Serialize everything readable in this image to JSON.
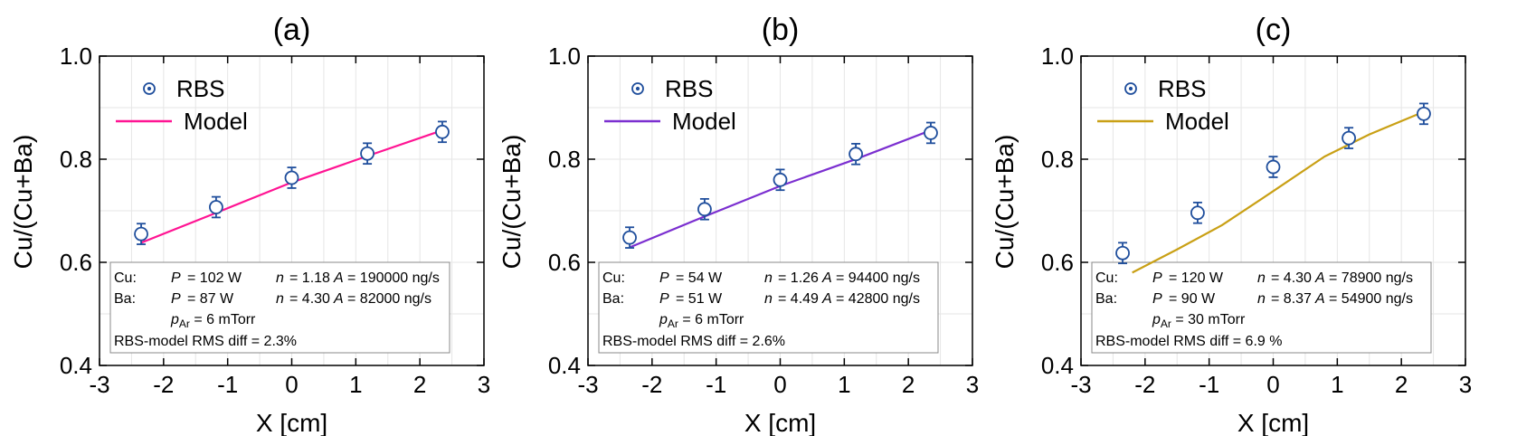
{
  "chart_data": [
    {
      "type": "scatter",
      "title": "(a)",
      "xlabel": "X [cm]",
      "ylabel": "Cu/(Cu+Ba)",
      "xlim": [
        -3,
        3
      ],
      "ylim": [
        0.4,
        1.0
      ],
      "xticks": [
        "-3",
        "-2",
        "-1",
        "0",
        "1",
        "2",
        "3"
      ],
      "yticks": [
        "0.4",
        "0.6",
        "0.8",
        "1.0"
      ],
      "grid": true,
      "legend": {
        "position": "top-left",
        "rbs_label": "RBS",
        "model_label": "Model"
      },
      "series": [
        {
          "name": "RBS",
          "x": [
            -2.35,
            -1.18,
            0,
            1.18,
            2.35
          ],
          "y": [
            0.655,
            0.707,
            0.764,
            0.811,
            0.853
          ],
          "err": [
            0.02,
            0.02,
            0.02,
            0.02,
            0.02
          ],
          "color": "#1f4e9c"
        },
        {
          "name": "Model",
          "x": [
            -2.35,
            -1.2,
            0,
            1.2,
            2.35
          ],
          "y": [
            0.638,
            0.695,
            0.755,
            0.807,
            0.856
          ],
          "color": "#ff1493"
        }
      ],
      "info": {
        "cu_label": "Cu:",
        "cu_P": "= 102 W",
        "cu_n": "= 1.18",
        "cu_A": "= 190000 ng/s",
        "ba_label": "Ba:",
        "ba_P": "= 87 W",
        "ba_n": "= 4.30",
        "ba_A": "= 82000   ng/s",
        "p_sym": "P",
        "n_sym": "n",
        "a_sym": "A",
        "pAr_sym": "p",
        "pAr_sub": "Ar",
        "pAr_val": " = 6 mTorr",
        "rms": "RBS-model RMS diff = 2.3%"
      }
    },
    {
      "type": "scatter",
      "title": "(b)",
      "xlabel": "X [cm]",
      "ylabel": "Cu/(Cu+Ba)",
      "xlim": [
        -3,
        3
      ],
      "ylim": [
        0.4,
        1.0
      ],
      "xticks": [
        "-3",
        "-2",
        "-1",
        "0",
        "1",
        "2",
        "3"
      ],
      "yticks": [
        "0.4",
        "0.6",
        "0.8",
        "1.0"
      ],
      "grid": true,
      "legend": {
        "position": "top-left",
        "rbs_label": "RBS",
        "model_label": "Model"
      },
      "series": [
        {
          "name": "RBS",
          "x": [
            -2.35,
            -1.18,
            0,
            1.18,
            2.35
          ],
          "y": [
            0.648,
            0.703,
            0.76,
            0.81,
            0.851
          ],
          "err": [
            0.02,
            0.02,
            0.02,
            0.02,
            0.02
          ],
          "color": "#1f4e9c"
        },
        {
          "name": "Model",
          "x": [
            -2.35,
            -1.2,
            0,
            1.2,
            2.35
          ],
          "y": [
            0.629,
            0.688,
            0.748,
            0.801,
            0.856
          ],
          "color": "#7b2fd0"
        }
      ],
      "info": {
        "cu_label": "Cu:",
        "cu_P": "= 54 W",
        "cu_n": "= 1.26",
        "cu_A": "= 94400 ng/s",
        "ba_label": "Ba:",
        "ba_P": "= 51 W",
        "ba_n": "= 4.49",
        "ba_A": "= 42800 ng/s",
        "p_sym": "P",
        "n_sym": "n",
        "a_sym": "A",
        "pAr_sym": "p",
        "pAr_sub": "Ar",
        "pAr_val": " = 6 mTorr",
        "rms": "RBS-model RMS diff = 2.6%"
      }
    },
    {
      "type": "scatter",
      "title": "(c)",
      "xlabel": "X [cm]",
      "ylabel": "Cu/(Cu+Ba)",
      "xlim": [
        -3,
        3
      ],
      "ylim": [
        0.4,
        1.0
      ],
      "xticks": [
        "-3",
        "-2",
        "-1",
        "0",
        "1",
        "2",
        "3"
      ],
      "yticks": [
        "0.4",
        "0.6",
        "0.8",
        "1.0"
      ],
      "grid": true,
      "legend": {
        "position": "top-left",
        "rbs_label": "RBS",
        "model_label": "Model"
      },
      "series": [
        {
          "name": "RBS",
          "x": [
            -2.35,
            -1.18,
            0,
            1.18,
            2.35
          ],
          "y": [
            0.618,
            0.696,
            0.785,
            0.841,
            0.888
          ],
          "err": [
            0.02,
            0.02,
            0.02,
            0.02,
            0.02
          ],
          "color": "#1f4e9c"
        },
        {
          "name": "Model",
          "x": [
            -2.2,
            -1.5,
            -0.8,
            0,
            0.8,
            1.5,
            2.35
          ],
          "y": [
            0.58,
            0.625,
            0.672,
            0.738,
            0.805,
            0.848,
            0.892
          ],
          "color": "#c9a015"
        }
      ],
      "info": {
        "cu_label": "Cu:",
        "cu_P": "= 120 W",
        "cu_n": "= 4.30",
        "cu_A": "= 78900 ng/s",
        "ba_label": "Ba:",
        "ba_P": "= 90 W",
        "ba_n": "= 8.37",
        "ba_A": "= 54900 ng/s",
        "p_sym": "P",
        "n_sym": "n",
        "a_sym": "A",
        "pAr_sym": "p",
        "pAr_sub": "Ar",
        "pAr_val": " = 30 mTorr",
        "rms": "RBS-model RMS diff = 6.9 %"
      }
    }
  ]
}
